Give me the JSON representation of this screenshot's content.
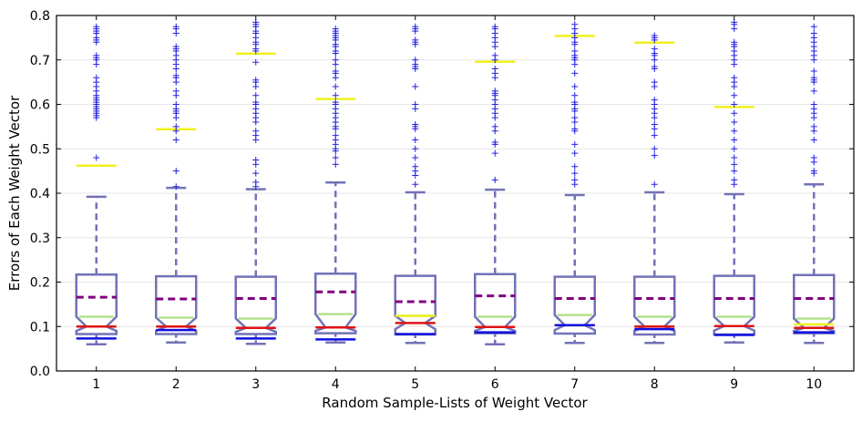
{
  "chart_data": {
    "type": "boxplot",
    "title": "",
    "xlabel": "Random Sample-Lists of Weight Vector",
    "ylabel": "Errors of Each Weight Vector",
    "ylim": [
      0.0,
      0.8
    ],
    "yticks": [
      "0.0",
      "0.1",
      "0.2",
      "0.3",
      "0.4",
      "0.5",
      "0.6",
      "0.7",
      "0.8"
    ],
    "ytick_values": [
      0.0,
      0.1,
      0.2,
      0.3,
      0.4,
      0.5,
      0.6,
      0.7,
      0.8
    ],
    "categories": [
      "1",
      "2",
      "3",
      "4",
      "5",
      "6",
      "7",
      "8",
      "9",
      "10"
    ],
    "grid": "horizontal",
    "notched": true,
    "colors": {
      "box": "#7272b8",
      "median": "#e01414",
      "mean": "#800080",
      "notch_line": "#b4e08c",
      "low_line": "#1010e0",
      "high_line": "#f0f020",
      "flier": "#2020e0"
    },
    "boxes": [
      {
        "whislo": 0.06,
        "q1": 0.083,
        "med": 0.1,
        "q3": 0.217,
        "whishi": 0.392,
        "mean": 0.166,
        "notch_lo": 0.09,
        "notch_hi": 0.122,
        "low": 0.073,
        "high": 0.462,
        "fliers": [
          0.48,
          0.57,
          0.575,
          0.58,
          0.585,
          0.59,
          0.595,
          0.6,
          0.605,
          0.61,
          0.615,
          0.62,
          0.63,
          0.64,
          0.65,
          0.66,
          0.69,
          0.7,
          0.705,
          0.71,
          0.74,
          0.745,
          0.75,
          0.76,
          0.765,
          0.77,
          0.775
        ]
      },
      {
        "whislo": 0.064,
        "q1": 0.083,
        "med": 0.1,
        "q3": 0.213,
        "whishi": 0.412,
        "mean": 0.162,
        "notch_lo": 0.09,
        "notch_hi": 0.12,
        "low": 0.092,
        "high": 0.544,
        "fliers": [
          0.415,
          0.45,
          0.52,
          0.54,
          0.55,
          0.57,
          0.58,
          0.585,
          0.59,
          0.6,
          0.62,
          0.63,
          0.65,
          0.66,
          0.665,
          0.68,
          0.69,
          0.7,
          0.71,
          0.72,
          0.725,
          0.73,
          0.76,
          0.77,
          0.775
        ]
      },
      {
        "whislo": 0.061,
        "q1": 0.083,
        "med": 0.097,
        "q3": 0.212,
        "whishi": 0.409,
        "mean": 0.163,
        "notch_lo": 0.088,
        "notch_hi": 0.118,
        "low": 0.073,
        "high": 0.714,
        "fliers": [
          0.415,
          0.425,
          0.445,
          0.465,
          0.475,
          0.52,
          0.53,
          0.54,
          0.56,
          0.57,
          0.58,
          0.59,
          0.6,
          0.605,
          0.62,
          0.64,
          0.65,
          0.655,
          0.695,
          0.72,
          0.725,
          0.735,
          0.74,
          0.75,
          0.76,
          0.765,
          0.775,
          0.78,
          0.785
        ]
      },
      {
        "whislo": 0.064,
        "q1": 0.085,
        "med": 0.098,
        "q3": 0.219,
        "whishi": 0.424,
        "mean": 0.178,
        "notch_lo": 0.09,
        "notch_hi": 0.128,
        "low": 0.071,
        "high": 0.612,
        "fliers": [
          0.465,
          0.48,
          0.495,
          0.5,
          0.51,
          0.52,
          0.53,
          0.545,
          0.55,
          0.56,
          0.57,
          0.58,
          0.59,
          0.6,
          0.605,
          0.62,
          0.64,
          0.66,
          0.67,
          0.675,
          0.69,
          0.7,
          0.715,
          0.72,
          0.73,
          0.735,
          0.745,
          0.75,
          0.755,
          0.76,
          0.765,
          0.77
        ]
      },
      {
        "whislo": 0.063,
        "q1": 0.082,
        "med": 0.108,
        "q3": 0.214,
        "whishi": 0.402,
        "mean": 0.156,
        "notch_lo": 0.094,
        "notch_hi": 0.124,
        "low": 0.083,
        "high": 0.124,
        "fliers": [
          0.42,
          0.44,
          0.45,
          0.46,
          0.48,
          0.5,
          0.52,
          0.545,
          0.55,
          0.555,
          0.59,
          0.6,
          0.64,
          0.68,
          0.685,
          0.69,
          0.7,
          0.735,
          0.74,
          0.745,
          0.765,
          0.77,
          0.775
        ]
      },
      {
        "whislo": 0.06,
        "q1": 0.085,
        "med": 0.099,
        "q3": 0.218,
        "whishi": 0.408,
        "mean": 0.169,
        "notch_lo": 0.09,
        "notch_hi": 0.122,
        "low": 0.087,
        "high": 0.696,
        "fliers": [
          0.43,
          0.49,
          0.51,
          0.515,
          0.54,
          0.55,
          0.57,
          0.58,
          0.59,
          0.6,
          0.61,
          0.62,
          0.625,
          0.63,
          0.66,
          0.67,
          0.68,
          0.7,
          0.71,
          0.73,
          0.74,
          0.75,
          0.76,
          0.77,
          0.775
        ]
      },
      {
        "whislo": 0.063,
        "q1": 0.084,
        "med": 0.103,
        "q3": 0.212,
        "whishi": 0.396,
        "mean": 0.163,
        "notch_lo": 0.092,
        "notch_hi": 0.126,
        "low": 0.103,
        "high": 0.754,
        "fliers": [
          0.42,
          0.43,
          0.445,
          0.46,
          0.49,
          0.51,
          0.54,
          0.545,
          0.56,
          0.57,
          0.585,
          0.59,
          0.6,
          0.605,
          0.62,
          0.64,
          0.67,
          0.69,
          0.7,
          0.705,
          0.71,
          0.72,
          0.735,
          0.74,
          0.75,
          0.76,
          0.77,
          0.78
        ]
      },
      {
        "whislo": 0.063,
        "q1": 0.082,
        "med": 0.1,
        "q3": 0.212,
        "whishi": 0.402,
        "mean": 0.163,
        "notch_lo": 0.09,
        "notch_hi": 0.122,
        "low": 0.094,
        "high": 0.739,
        "fliers": [
          0.42,
          0.485,
          0.5,
          0.53,
          0.545,
          0.555,
          0.57,
          0.58,
          0.59,
          0.6,
          0.61,
          0.64,
          0.65,
          0.68,
          0.685,
          0.7,
          0.71,
          0.715,
          0.725,
          0.745,
          0.75,
          0.755
        ]
      },
      {
        "whislo": 0.064,
        "q1": 0.082,
        "med": 0.101,
        "q3": 0.214,
        "whishi": 0.398,
        "mean": 0.163,
        "notch_lo": 0.091,
        "notch_hi": 0.122,
        "low": 0.081,
        "high": 0.594,
        "fliers": [
          0.42,
          0.43,
          0.45,
          0.465,
          0.48,
          0.5,
          0.52,
          0.54,
          0.56,
          0.58,
          0.6,
          0.62,
          0.64,
          0.65,
          0.66,
          0.69,
          0.7,
          0.71,
          0.72,
          0.73,
          0.735,
          0.74,
          0.77,
          0.78,
          0.785
        ]
      },
      {
        "whislo": 0.063,
        "q1": 0.085,
        "med": 0.097,
        "q3": 0.216,
        "whishi": 0.42,
        "mean": 0.163,
        "notch_lo": 0.09,
        "notch_hi": 0.118,
        "low": 0.087,
        "high": 0.105,
        "fliers": [
          0.445,
          0.45,
          0.47,
          0.48,
          0.52,
          0.54,
          0.55,
          0.57,
          0.58,
          0.59,
          0.6,
          0.63,
          0.65,
          0.655,
          0.66,
          0.675,
          0.7,
          0.71,
          0.72,
          0.73,
          0.74,
          0.75,
          0.76,
          0.775
        ]
      }
    ]
  }
}
